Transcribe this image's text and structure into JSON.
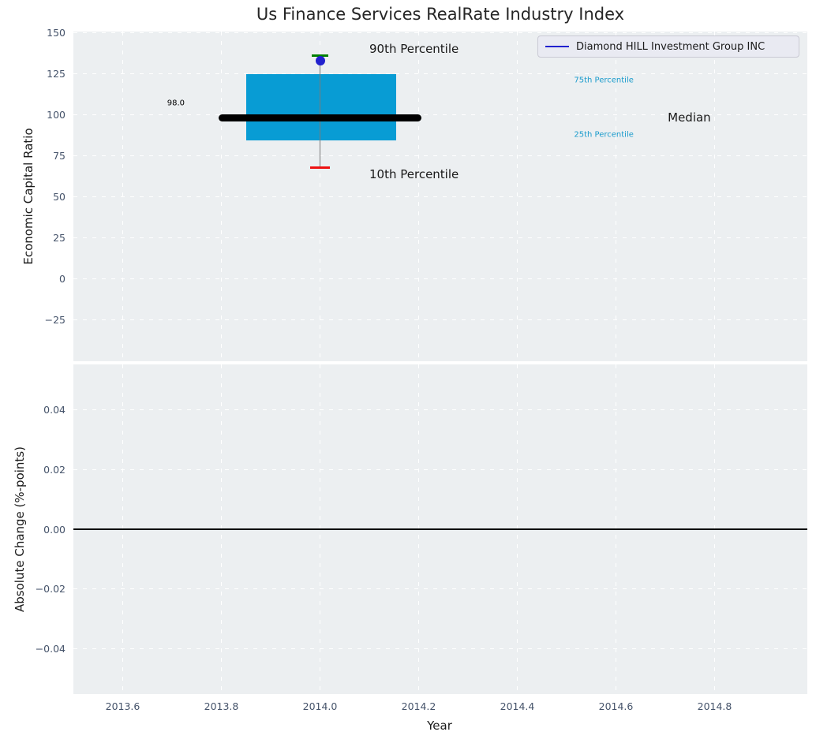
{
  "figure": {
    "background": "#ffffff",
    "axes_background": "#eceff1",
    "grid_color": "#ffffff",
    "tick_color": "#45536a",
    "text_color": "#262626"
  },
  "legend": {
    "label": "Diamond HILL Investment Group INC",
    "line_color": "#2121ce"
  },
  "chart_data": [
    {
      "type": "box",
      "title": "Us Finance Services RealRate Industry Index",
      "ylabel": "Economic Capital Ratio",
      "xlabel": "",
      "xlim": [
        2013.5,
        2014.988
      ],
      "ylim": [
        -50,
        150.6
      ],
      "grid": true,
      "legend_position": "upper right",
      "yticks": [
        {
          "v": 150,
          "label": "150"
        },
        {
          "v": 125,
          "label": "125"
        },
        {
          "v": 100,
          "label": "100"
        },
        {
          "v": 75,
          "label": "75"
        },
        {
          "v": 50,
          "label": "50"
        },
        {
          "v": 25,
          "label": "25"
        },
        {
          "v": 0,
          "label": "0"
        },
        {
          "v": -25,
          "label": "−25"
        }
      ],
      "xticks": [
        {
          "v": 2013.6,
          "label": ""
        },
        {
          "v": 2013.8,
          "label": ""
        },
        {
          "v": 2014.0,
          "label": ""
        },
        {
          "v": 2014.2,
          "label": ""
        },
        {
          "v": 2014.4,
          "label": ""
        },
        {
          "v": 2014.6,
          "label": ""
        },
        {
          "v": 2014.8,
          "label": ""
        }
      ],
      "box": {
        "x": 2014.0,
        "median": 98.0,
        "median_label": "98.0",
        "q1": 84.5,
        "q3": 124.5,
        "p10": 68.0,
        "p90": 136.0,
        "company_value": 133.0,
        "box_x_left": 2013.85,
        "box_x_right": 2014.155,
        "median_x_left": 2013.795,
        "median_x_right": 2014.205,
        "box_color": "#089cd4",
        "median_color": "#000000",
        "p90_color": "#008000",
        "p10_color": "#ee1111",
        "marker_color": "#2121ce",
        "whisker_color": "#7a7a7a"
      },
      "annotations": [
        {
          "text": "90th Percentile",
          "x": 2014.1,
          "y": 140.0,
          "color": "#1a1a1a",
          "size": 15
        },
        {
          "text": "10th Percentile",
          "x": 2014.1,
          "y": 63.5,
          "color": "#1a1a1a",
          "size": 15
        },
        {
          "text": "75th Percentile",
          "x": 2014.515,
          "y": 121.0,
          "color": "#1a9bcc",
          "size": 10
        },
        {
          "text": "25th Percentile",
          "x": 2014.515,
          "y": 87.5,
          "color": "#1a9bcc",
          "size": 10
        },
        {
          "text": "Median",
          "x": 2014.705,
          "y": 98.5,
          "color": "#1a1a1a",
          "size": 15
        },
        {
          "text": "98.0",
          "x": 2013.69,
          "y": 107.0,
          "color": "#000000",
          "size": 10
        }
      ]
    },
    {
      "type": "line",
      "title": "",
      "ylabel": "Absolute Change (%-points)",
      "xlabel": "Year",
      "xlim": [
        2013.5,
        2014.988
      ],
      "ylim": [
        -0.0552,
        0.0552
      ],
      "grid": true,
      "zero_line": 0.0,
      "yticks": [
        {
          "v": 0.04,
          "label": "0.04"
        },
        {
          "v": 0.02,
          "label": "0.02"
        },
        {
          "v": 0.0,
          "label": "0.00"
        },
        {
          "v": -0.02,
          "label": "−0.02"
        },
        {
          "v": -0.04,
          "label": "−0.04"
        }
      ],
      "xticks": [
        {
          "v": 2013.6,
          "label": "2013.6"
        },
        {
          "v": 2013.8,
          "label": "2013.8"
        },
        {
          "v": 2014.0,
          "label": "2014.0"
        },
        {
          "v": 2014.2,
          "label": "2014.2"
        },
        {
          "v": 2014.4,
          "label": "2014.4"
        },
        {
          "v": 2014.6,
          "label": "2014.6"
        },
        {
          "v": 2014.8,
          "label": "2014.8"
        }
      ]
    }
  ]
}
